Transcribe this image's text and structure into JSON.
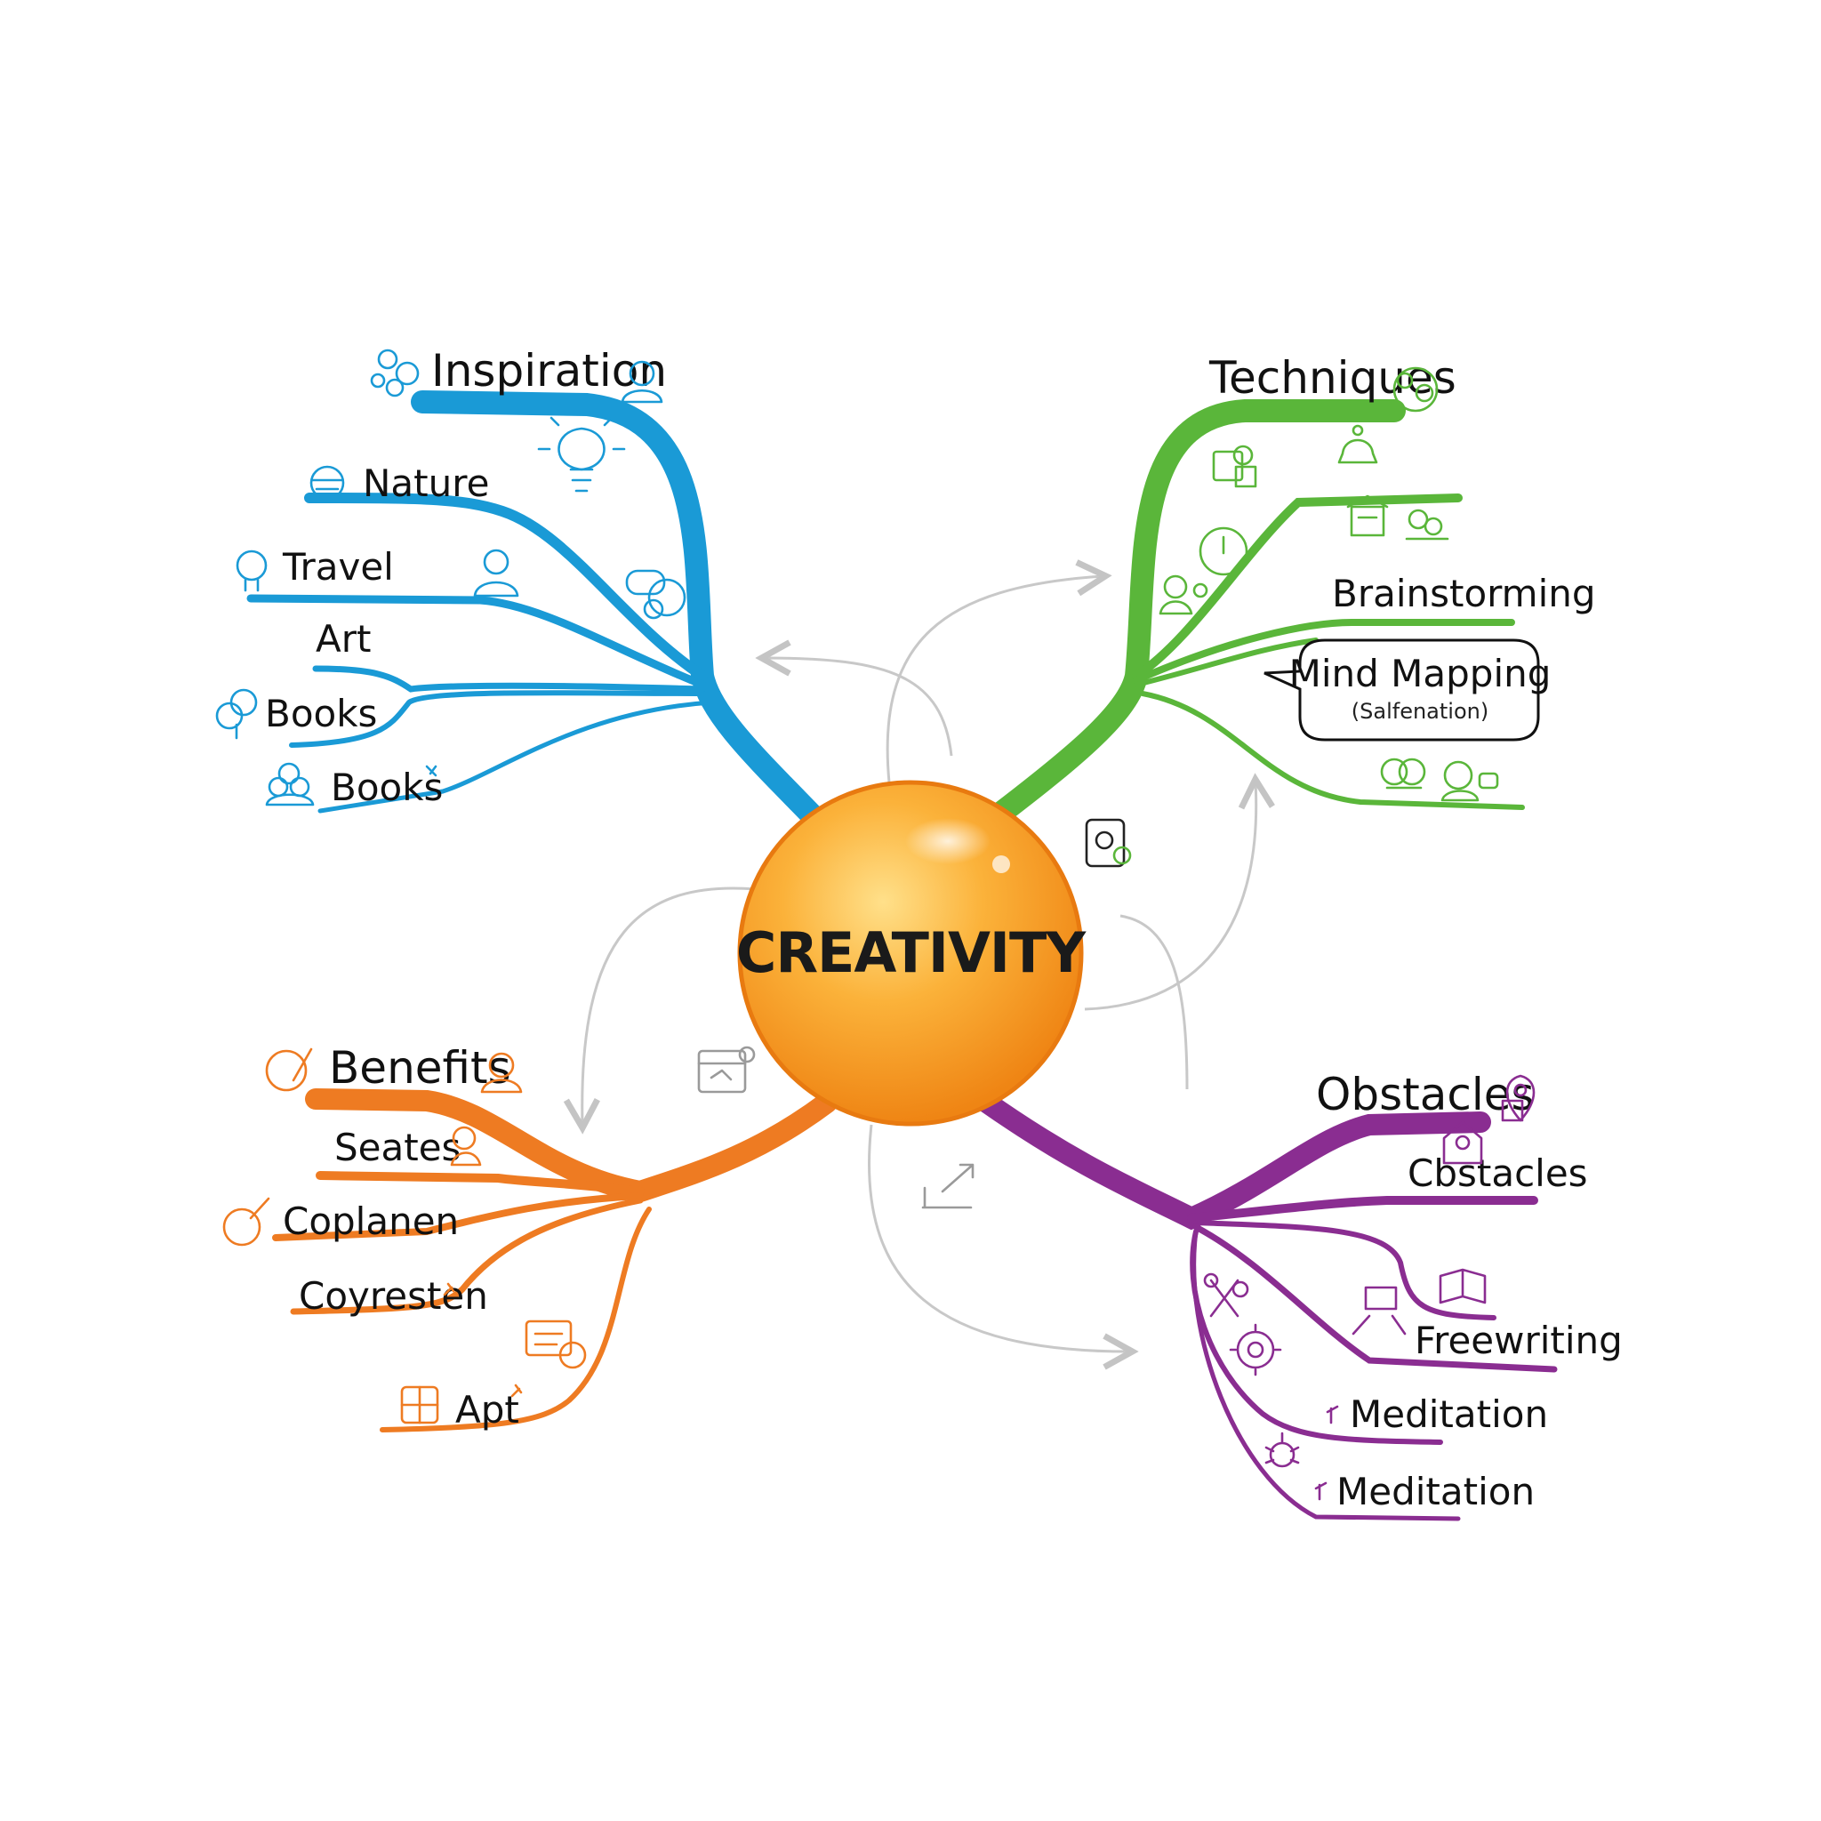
{
  "center": {
    "label": "CREATIVITY"
  },
  "colors": {
    "inspiration": "#1a9ad6",
    "techniques": "#5ab63a",
    "benefits": "#ee7b22",
    "obstacles": "#8a2d91",
    "connector": "#c8c8c8",
    "center_light": "#ffd36a",
    "center_dark": "#f08a14"
  },
  "branches": {
    "inspiration": {
      "title": "Inspiration",
      "items": [
        "Nature",
        "Travel",
        "Art",
        "Books",
        "Books"
      ]
    },
    "techniques": {
      "title": "Techniques",
      "items": [
        "Brainstorming"
      ],
      "callout": {
        "title": "Mind Mapping",
        "subtitle": "(Salfenation)"
      }
    },
    "benefits": {
      "title": "Benefits",
      "items": [
        "Seates",
        "Coplanen",
        "Coyresten",
        "Apt"
      ]
    },
    "obstacles": {
      "title": "Obstacles",
      "items": [
        "Cbstacles",
        "Freewriting",
        "Meditation",
        "Meditation"
      ]
    }
  }
}
